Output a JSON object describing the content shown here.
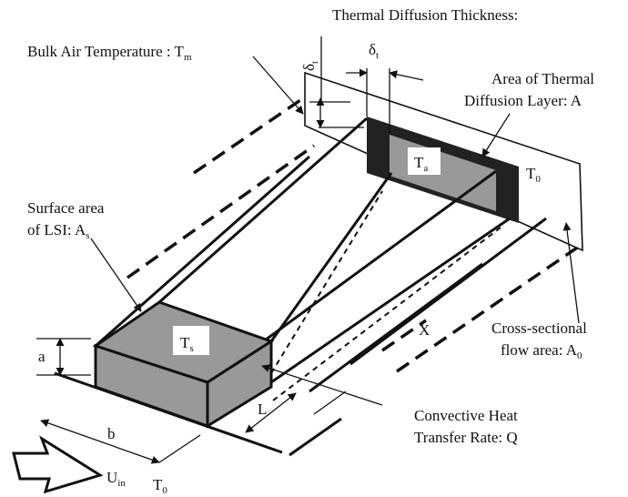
{
  "labels": [
    {
      "text": "Thermal Diffusion Thickness:"
    },
    {
      "text": "Bulk Air Temperature : T",
      "sub": "m"
    },
    {
      "text": "δ",
      "sub": "t"
    },
    {
      "text": "δ",
      "sub": "t"
    },
    {
      "text": "Area of Thermal"
    },
    {
      "text": "Diffusion Layer: A"
    },
    {
      "text": "T",
      "sub": "a"
    },
    {
      "text": "T",
      "sub": "0"
    },
    {
      "text": "Surface area"
    },
    {
      "text": "of LSI: A",
      "sub": "s"
    },
    {
      "text": "T",
      "sub": "s"
    },
    {
      "text": "a"
    },
    {
      "text": "b"
    },
    {
      "text": "L"
    },
    {
      "text": "X"
    },
    {
      "text": "Cross-sectional"
    },
    {
      "text": "flow area: A",
      "sub": "0"
    },
    {
      "text": "Convective Heat"
    },
    {
      "text": "Transfer Rate: Q"
    },
    {
      "text": "U",
      "sub": "in"
    },
    {
      "text": "T",
      "sub": "0"
    }
  ]
}
